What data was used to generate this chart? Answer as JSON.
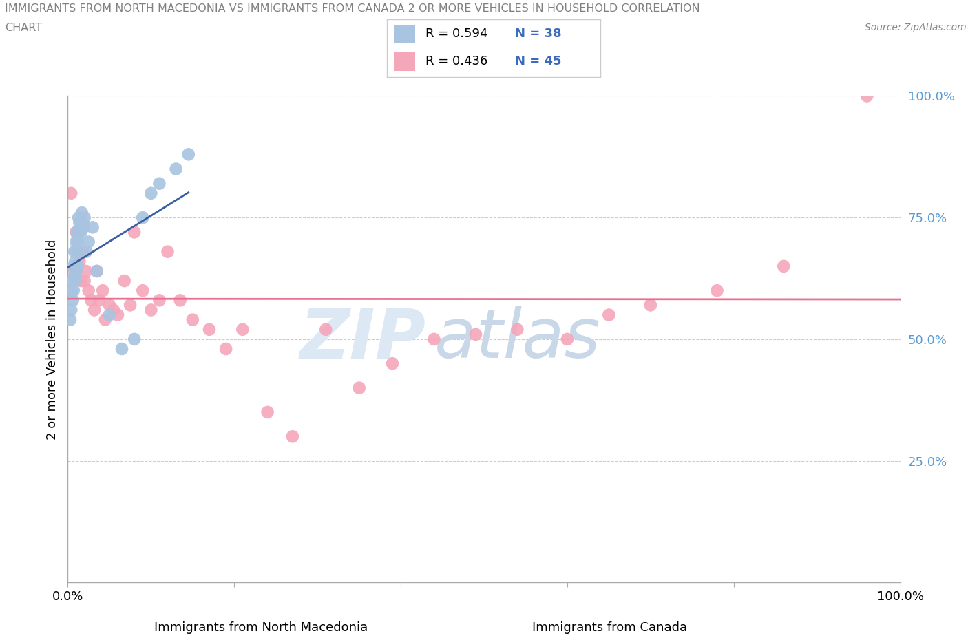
{
  "title_line1": "IMMIGRANTS FROM NORTH MACEDONIA VS IMMIGRANTS FROM CANADA 2 OR MORE VEHICLES IN HOUSEHOLD CORRELATION",
  "title_line2": "CHART",
  "source": "Source: ZipAtlas.com",
  "xlabel_bottom_left": "Immigrants from North Macedonia",
  "xlabel_bottom_right": "Immigrants from Canada",
  "ylabel": "2 or more Vehicles in Household",
  "xmin": 0.0,
  "xmax": 1.0,
  "ymin": 0.0,
  "ymax": 1.0,
  "blue_R": 0.594,
  "blue_N": 38,
  "pink_R": 0.436,
  "pink_N": 45,
  "blue_color": "#a8c4e0",
  "pink_color": "#f4a7b9",
  "blue_line_color": "#3a5fa0",
  "pink_line_color": "#e87090",
  "grid_color": "#cccccc",
  "right_label_color": "#5b9bd5",
  "watermark_color": "#dce9f5",
  "title_color": "#808080",
  "legend_N_color": "#3a6bbf",
  "blue_x": [
    0.003,
    0.004,
    0.005,
    0.006,
    0.006,
    0.007,
    0.007,
    0.008,
    0.008,
    0.009,
    0.009,
    0.01,
    0.01,
    0.011,
    0.011,
    0.012,
    0.012,
    0.013,
    0.013,
    0.014,
    0.015,
    0.016,
    0.017,
    0.018,
    0.019,
    0.02,
    0.022,
    0.025,
    0.03,
    0.035,
    0.05,
    0.065,
    0.08,
    0.09,
    0.1,
    0.11,
    0.13,
    0.145
  ],
  "blue_y": [
    0.54,
    0.56,
    0.6,
    0.58,
    0.62,
    0.65,
    0.6,
    0.63,
    0.68,
    0.62,
    0.66,
    0.64,
    0.7,
    0.68,
    0.72,
    0.7,
    0.65,
    0.72,
    0.75,
    0.74,
    0.73,
    0.72,
    0.76,
    0.74,
    0.73,
    0.75,
    0.68,
    0.7,
    0.73,
    0.64,
    0.55,
    0.48,
    0.5,
    0.75,
    0.8,
    0.82,
    0.85,
    0.88
  ],
  "pink_x": [
    0.004,
    0.008,
    0.01,
    0.012,
    0.014,
    0.016,
    0.018,
    0.02,
    0.022,
    0.025,
    0.028,
    0.032,
    0.035,
    0.038,
    0.042,
    0.045,
    0.05,
    0.055,
    0.06,
    0.068,
    0.075,
    0.08,
    0.09,
    0.1,
    0.11,
    0.12,
    0.135,
    0.15,
    0.17,
    0.19,
    0.21,
    0.24,
    0.27,
    0.31,
    0.35,
    0.39,
    0.44,
    0.49,
    0.54,
    0.6,
    0.65,
    0.7,
    0.78,
    0.86,
    0.96
  ],
  "pink_y": [
    0.8,
    0.64,
    0.72,
    0.68,
    0.66,
    0.62,
    0.68,
    0.62,
    0.64,
    0.6,
    0.58,
    0.56,
    0.64,
    0.58,
    0.6,
    0.54,
    0.57,
    0.56,
    0.55,
    0.62,
    0.57,
    0.72,
    0.6,
    0.56,
    0.58,
    0.68,
    0.58,
    0.54,
    0.52,
    0.48,
    0.52,
    0.35,
    0.3,
    0.52,
    0.4,
    0.45,
    0.5,
    0.51,
    0.52,
    0.5,
    0.55,
    0.57,
    0.6,
    0.65,
    1.0
  ],
  "yticks": [
    0.0,
    0.25,
    0.5,
    0.75,
    1.0
  ],
  "ytick_labels_right": [
    "",
    "25.0%",
    "50.0%",
    "75.0%",
    "100.0%"
  ],
  "xtick_positions": [
    0.0,
    0.2,
    0.4,
    0.6,
    0.8,
    1.0
  ],
  "xtick_labels": [
    "0.0%",
    "",
    "",
    "",
    "",
    "100.0%"
  ]
}
